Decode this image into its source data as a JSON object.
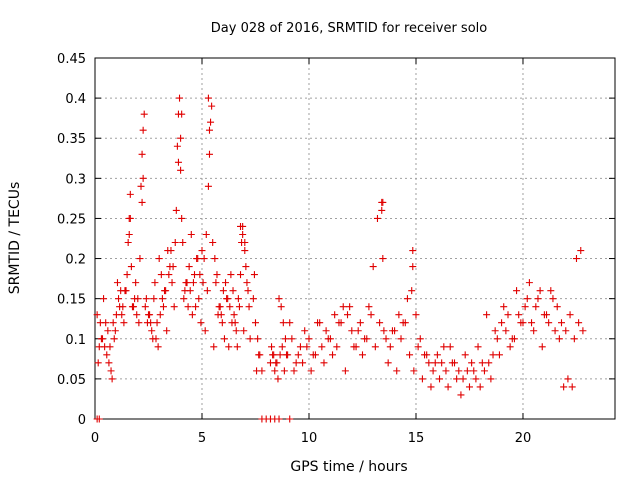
{
  "chart_data": {
    "type": "scatter",
    "title": "Day 028 of 2016, SRMTID for receiver solo",
    "xlabel": "GPS time / hours",
    "ylabel": "SRMTID / TECUs",
    "xlim": [
      0,
      24.3
    ],
    "ylim": [
      0,
      0.45
    ],
    "xticks": [
      0,
      5,
      10,
      15,
      20
    ],
    "xtick_labels": [
      "0",
      "5",
      "10",
      "15",
      "20"
    ],
    "yticks": [
      0,
      0.05,
      0.1,
      0.15,
      0.2,
      0.25,
      0.3,
      0.35,
      0.4,
      0.45
    ],
    "ytick_labels": [
      "0",
      "0.05",
      "0.1",
      "0.15",
      "0.2",
      "0.25",
      "0.3",
      "0.35",
      "0.4",
      "0.45"
    ],
    "grid": true,
    "marker": "+",
    "marker_color": "#e00000",
    "series": [
      {
        "name": "SRMTID",
        "x": [
          0.1,
          0.2,
          0.3,
          0.4,
          0.5,
          0.55,
          0.6,
          0.7,
          0.75,
          0.8,
          0.9,
          1.0,
          1.05,
          1.1,
          1.2,
          1.3,
          1.4,
          1.5,
          1.55,
          1.6,
          1.65,
          1.7,
          1.8,
          1.9,
          2.0,
          2.05,
          2.1,
          2.15,
          2.2,
          2.25,
          2.3,
          2.4,
          2.5,
          2.6,
          2.7,
          2.8,
          2.9,
          3.0,
          3.1,
          3.2,
          3.3,
          3.4,
          3.5,
          3.6,
          3.7,
          3.8,
          3.85,
          3.9,
          3.95,
          4.0,
          4.05,
          4.1,
          4.2,
          4.3,
          4.4,
          4.5,
          4.6,
          4.7,
          4.8,
          4.9,
          5.0,
          5.1,
          5.2,
          5.3,
          5.35,
          5.4,
          5.45,
          5.5,
          5.6,
          5.7,
          5.8,
          5.9,
          6.0,
          6.1,
          6.2,
          6.3,
          6.4,
          6.5,
          6.6,
          6.7,
          6.8,
          6.85,
          6.9,
          7.0,
          7.1,
          7.2,
          7.4,
          7.5,
          7.6,
          7.7,
          7.8,
          8.2,
          8.3,
          8.4,
          8.5,
          8.6,
          8.7,
          8.8,
          8.9,
          9.0,
          9.2,
          9.4,
          9.6,
          9.8,
          10.0,
          10.2,
          10.4,
          10.6,
          10.8,
          11.0,
          11.2,
          11.4,
          11.6,
          11.8,
          12.0,
          12.2,
          12.4,
          12.6,
          12.8,
          13.0,
          13.2,
          13.4,
          13.45,
          13.5,
          13.6,
          13.8,
          14.0,
          14.2,
          14.4,
          14.6,
          14.8,
          14.85,
          15.0,
          15.2,
          15.4,
          15.6,
          15.8,
          16.0,
          16.2,
          16.4,
          16.6,
          16.8,
          17.0,
          17.2,
          17.4,
          17.6,
          17.8,
          18.0,
          18.2,
          18.4,
          18.6,
          18.8,
          19.0,
          19.2,
          19.4,
          19.6,
          19.8,
          20.0,
          20.1,
          20.2,
          20.4,
          20.6,
          20.8,
          21.0,
          21.2,
          21.4,
          21.6,
          21.8,
          22.0,
          22.2,
          22.4,
          22.6,
          22.8,
          0.15,
          0.25,
          0.35,
          0.45,
          0.65,
          0.85,
          0.95,
          1.15,
          1.25,
          1.35,
          1.45,
          1.75,
          1.85,
          1.95,
          2.35,
          2.45,
          2.55,
          2.65,
          2.75,
          2.85,
          2.95,
          3.05,
          3.15,
          3.25,
          3.35,
          3.45,
          3.55,
          3.65,
          3.75,
          4.15,
          4.25,
          4.35,
          4.45,
          4.55,
          4.65,
          4.75,
          4.85,
          4.95,
          5.05,
          5.15,
          5.25,
          5.55,
          5.65,
          5.75,
          5.85,
          5.95,
          6.05,
          6.15,
          6.25,
          6.35,
          6.45,
          6.55,
          6.65,
          6.75,
          6.95,
          7.05,
          7.15,
          7.25,
          7.45,
          7.55,
          7.65,
          8.25,
          8.35,
          8.45,
          8.55,
          8.65,
          8.75,
          8.85,
          8.95,
          9.1,
          9.3,
          9.5,
          9.7,
          9.9,
          10.1,
          10.3,
          10.5,
          10.7,
          10.9,
          11.1,
          11.3,
          11.5,
          11.7,
          11.9,
          12.1,
          12.3,
          12.5,
          12.7,
          12.9,
          13.1,
          13.3,
          13.7,
          13.9,
          14.1,
          14.3,
          14.5,
          14.7,
          14.9,
          15.1,
          15.3,
          15.5,
          15.7,
          15.9,
          16.1,
          16.3,
          16.5,
          16.7,
          16.9,
          17.1,
          17.3,
          17.5,
          17.7,
          17.9,
          18.1,
          18.3,
          18.5,
          18.7,
          18.9,
          19.1,
          19.3,
          19.5,
          19.7,
          19.9,
          20.3,
          20.5,
          20.7,
          20.9,
          21.1,
          21.3,
          21.5,
          21.7,
          21.9,
          22.1,
          22.3,
          22.5,
          22.7,
          1.6,
          1.65,
          2.2,
          2.25,
          3.9,
          4.0,
          4.05,
          5.3,
          5.35,
          6.8,
          6.9,
          7.0,
          13.4,
          13.45,
          14.85,
          7.8,
          8.0,
          8.2,
          8.4,
          8.6,
          9.1,
          0.1,
          0.2
        ],
        "y": [
          0.13,
          0.09,
          0.1,
          0.15,
          0.12,
          0.08,
          0.11,
          0.09,
          0.06,
          0.05,
          0.1,
          0.13,
          0.17,
          0.15,
          0.16,
          0.14,
          0.16,
          0.18,
          0.22,
          0.25,
          0.28,
          0.19,
          0.14,
          0.17,
          0.15,
          0.12,
          0.2,
          0.29,
          0.33,
          0.36,
          0.38,
          0.15,
          0.13,
          0.12,
          0.1,
          0.17,
          0.12,
          0.2,
          0.18,
          0.14,
          0.16,
          0.21,
          0.19,
          0.17,
          0.14,
          0.26,
          0.34,
          0.38,
          0.4,
          0.31,
          0.25,
          0.22,
          0.16,
          0.17,
          0.19,
          0.23,
          0.17,
          0.14,
          0.2,
          0.18,
          0.21,
          0.2,
          0.23,
          0.29,
          0.33,
          0.37,
          0.39,
          0.22,
          0.2,
          0.18,
          0.14,
          0.13,
          0.16,
          0.17,
          0.15,
          0.14,
          0.12,
          0.13,
          0.11,
          0.15,
          0.18,
          0.22,
          0.24,
          0.21,
          0.17,
          0.14,
          0.15,
          0.12,
          0.1,
          0.08,
          0.06,
          0.07,
          0.08,
          0.06,
          0.07,
          0.15,
          0.14,
          0.12,
          0.1,
          0.08,
          0.1,
          0.07,
          0.09,
          0.11,
          0.1,
          0.08,
          0.12,
          0.09,
          0.11,
          0.1,
          0.13,
          0.12,
          0.14,
          0.13,
          0.11,
          0.09,
          0.12,
          0.1,
          0.14,
          0.19,
          0.25,
          0.27,
          0.2,
          0.11,
          0.1,
          0.09,
          0.11,
          0.13,
          0.12,
          0.15,
          0.16,
          0.19,
          0.13,
          0.1,
          0.08,
          0.07,
          0.06,
          0.08,
          0.07,
          0.06,
          0.09,
          0.07,
          0.06,
          0.05,
          0.06,
          0.07,
          0.05,
          0.04,
          0.06,
          0.07,
          0.08,
          0.1,
          0.12,
          0.11,
          0.09,
          0.1,
          0.13,
          0.12,
          0.14,
          0.15,
          0.12,
          0.14,
          0.16,
          0.13,
          0.12,
          0.15,
          0.14,
          0.12,
          0.11,
          0.13,
          0.1,
          0.12,
          0.11,
          0.07,
          0.12,
          0.1,
          0.09,
          0.07,
          0.12,
          0.11,
          0.14,
          0.13,
          0.12,
          0.16,
          0.14,
          0.15,
          0.13,
          0.14,
          0.12,
          0.13,
          0.11,
          0.15,
          0.1,
          0.09,
          0.13,
          0.15,
          0.16,
          0.11,
          0.18,
          0.21,
          0.19,
          0.22,
          0.15,
          0.17,
          0.14,
          0.16,
          0.13,
          0.18,
          0.2,
          0.15,
          0.12,
          0.17,
          0.11,
          0.16,
          0.09,
          0.17,
          0.13,
          0.14,
          0.12,
          0.1,
          0.15,
          0.09,
          0.18,
          0.16,
          0.12,
          0.09,
          0.14,
          0.11,
          0.19,
          0.16,
          0.1,
          0.18,
          0.06,
          0.08,
          0.09,
          0.08,
          0.07,
          0.05,
          0.08,
          0.09,
          0.06,
          0.08,
          0.12,
          0.06,
          0.08,
          0.07,
          0.09,
          0.06,
          0.08,
          0.12,
          0.07,
          0.1,
          0.08,
          0.09,
          0.12,
          0.06,
          0.14,
          0.09,
          0.11,
          0.08,
          0.1,
          0.13,
          0.09,
          0.12,
          0.07,
          0.11,
          0.06,
          0.1,
          0.12,
          0.08,
          0.06,
          0.09,
          0.05,
          0.08,
          0.04,
          0.07,
          0.05,
          0.09,
          0.04,
          0.07,
          0.05,
          0.03,
          0.08,
          0.04,
          0.06,
          0.09,
          0.07,
          0.13,
          0.05,
          0.11,
          0.08,
          0.14,
          0.13,
          0.1,
          0.16,
          0.12,
          0.17,
          0.11,
          0.15,
          0.09,
          0.13,
          0.16,
          0.11,
          0.1,
          0.04,
          0.05,
          0.04,
          0.2,
          0.21,
          0.23,
          0.25,
          0.27,
          0.3,
          0.32,
          0.35,
          0.38,
          0.4,
          0.36,
          0.24,
          0.23,
          0.22,
          0.26,
          0.27,
          0.21,
          0.0,
          0.0,
          0.0,
          0.0,
          0.0,
          0.0,
          0.0,
          0.0
        ]
      }
    ]
  }
}
